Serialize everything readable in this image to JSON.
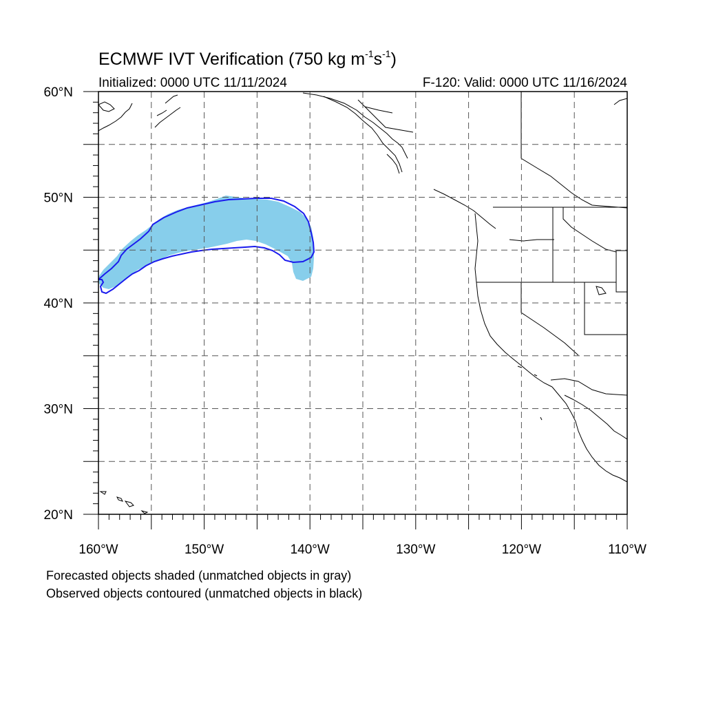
{
  "header": {
    "title_main": "ECMWF IVT Verification (750 kg m",
    "title_exp1": "-1",
    "title_mid": "s",
    "title_exp2": "-1",
    "title_end": ")",
    "initialized": "Initialized: 0000 UTC 11/11/2024",
    "valid": "F-120: Valid: 0000 UTC 11/16/2024"
  },
  "map": {
    "lat_range": [
      20,
      60
    ],
    "lon_range": [
      -160,
      -110
    ],
    "lat_labels": [
      "20°N",
      "30°N",
      "40°N",
      "50°N",
      "60°N"
    ],
    "lon_labels": [
      "160°W",
      "150°W",
      "140°W",
      "130°W",
      "120°W",
      "110°W"
    ],
    "grid_style": "dashed",
    "colors": {
      "forecast_fill": "#87ceeb",
      "observed_contour": "#1a1aee",
      "coastline": "#000000",
      "grid": "#555555"
    }
  },
  "legend": {
    "forecast_note": "Forecasted objects shaded (unmatched objects in gray)",
    "observed_note": "Observed objects contoured (unmatched objects in black)"
  }
}
